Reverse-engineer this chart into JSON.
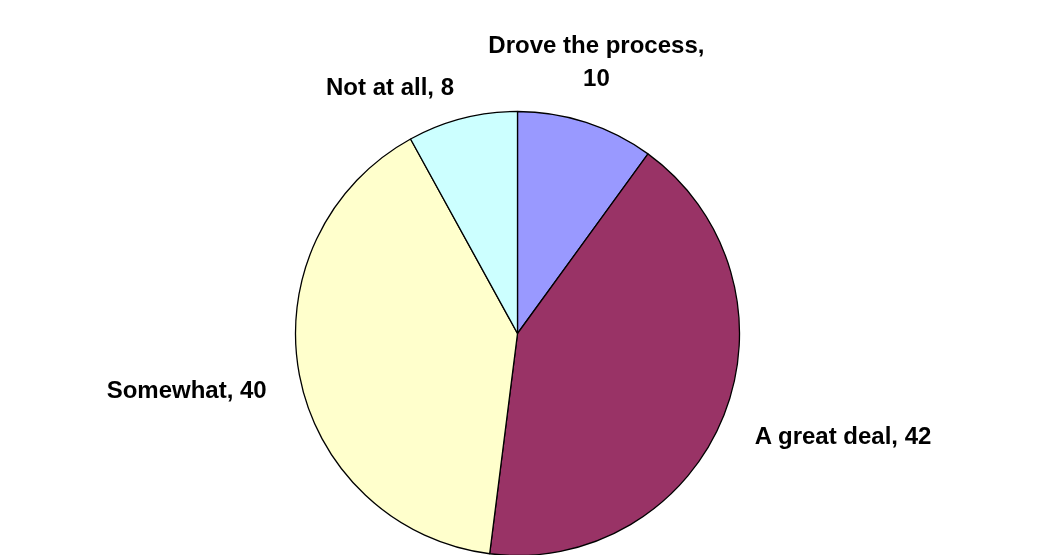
{
  "chart_data": {
    "type": "pie",
    "categories": [
      "Drove the process",
      "A great deal",
      "Somewhat",
      "Not at all"
    ],
    "values": [
      10,
      42,
      40,
      8
    ],
    "colors": [
      "#9999ff",
      "#993366",
      "#ffffcc",
      "#ccffff"
    ],
    "value_labels": [
      ", 10",
      ", 42",
      ", 40",
      ", 8"
    ]
  }
}
